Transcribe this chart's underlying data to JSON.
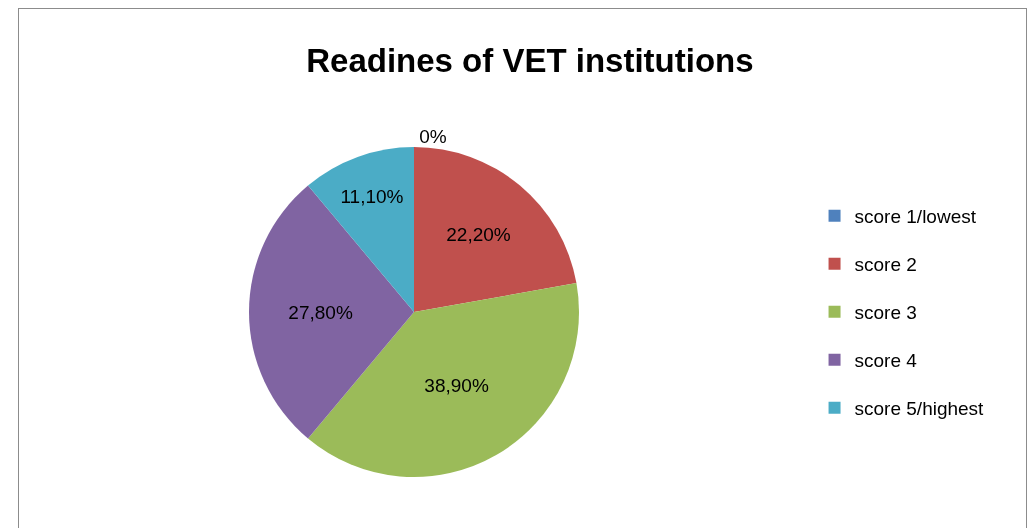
{
  "chart_data": {
    "type": "pie",
    "title": "Readines of VET institutions",
    "categories": [
      "score 1/lowest",
      "score 2",
      "score 3",
      "score 4",
      "score 5/highest"
    ],
    "values": [
      0,
      22.2,
      38.9,
      27.8,
      11.1
    ],
    "colors": [
      "#4f81bd",
      "#c0504d",
      "#9bbb59",
      "#8064a2",
      "#4bacc6"
    ],
    "value_labels": [
      "0%",
      "22,20%",
      "38,90%",
      "27,80%",
      "11,10%"
    ],
    "legend": "right"
  }
}
